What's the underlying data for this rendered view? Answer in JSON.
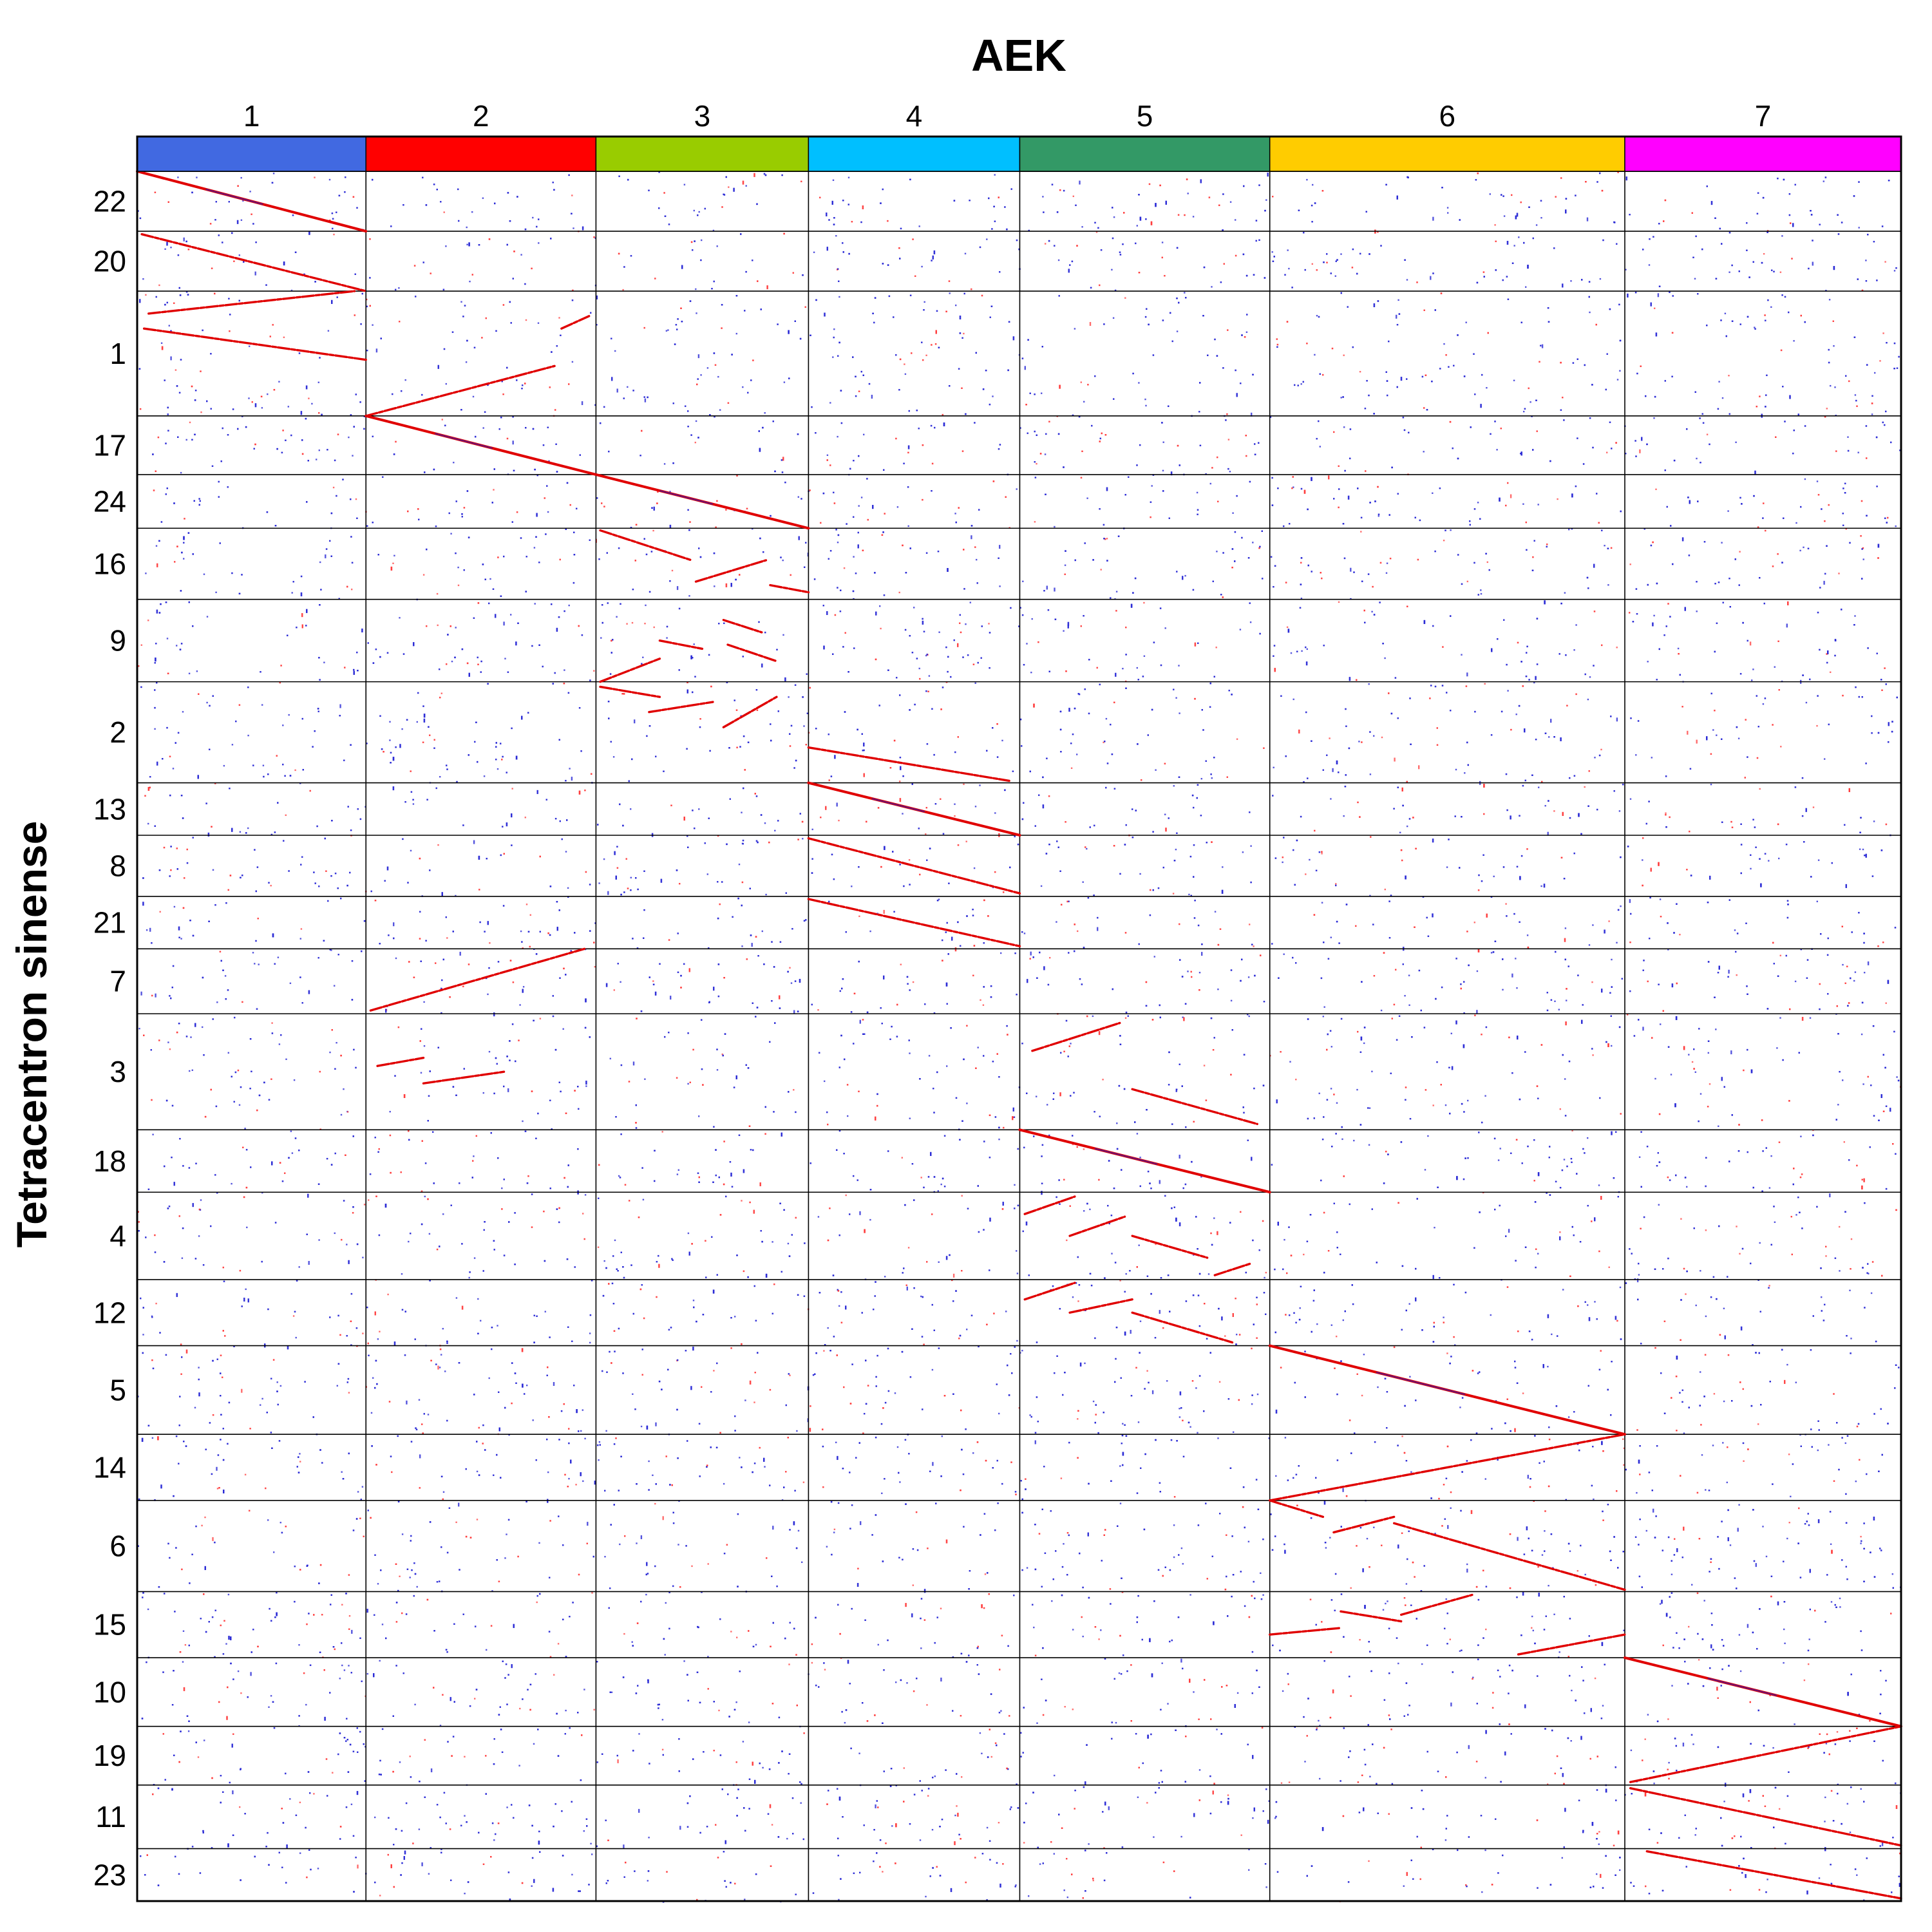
{
  "chart_data": {
    "type": "scatter",
    "title": "AEK",
    "xlabel": "AEK",
    "ylabel": "Tetracentron sinense",
    "x_chromosomes": [
      {
        "label": "1",
        "color": "#4169e1",
        "size": 183
      },
      {
        "label": "2",
        "color": "#ff0000",
        "size": 184
      },
      {
        "label": "3",
        "color": "#99cc00",
        "size": 170
      },
      {
        "label": "4",
        "color": "#00bfff",
        "size": 169
      },
      {
        "label": "5",
        "color": "#339966",
        "size": 200
      },
      {
        "label": "6",
        "color": "#ffcc00",
        "size": 284
      },
      {
        "label": "7",
        "color": "#ff00ff",
        "size": 221
      }
    ],
    "y_chromosomes": [
      {
        "label": "22",
        "size": 48
      },
      {
        "label": "20",
        "size": 48
      },
      {
        "label": "1",
        "size": 100
      },
      {
        "label": "17",
        "size": 47
      },
      {
        "label": "24",
        "size": 43
      },
      {
        "label": "16",
        "size": 57
      },
      {
        "label": "9",
        "size": 66
      },
      {
        "label": "2",
        "size": 81
      },
      {
        "label": "13",
        "size": 42
      },
      {
        "label": "8",
        "size": 49
      },
      {
        "label": "21",
        "size": 42
      },
      {
        "label": "7",
        "size": 52
      },
      {
        "label": "3",
        "size": 93
      },
      {
        "label": "18",
        "size": 50
      },
      {
        "label": "4",
        "size": 70
      },
      {
        "label": "12",
        "size": 53
      },
      {
        "label": "5",
        "size": 71
      },
      {
        "label": "14",
        "size": 53
      },
      {
        "label": "6",
        "size": 73
      },
      {
        "label": "15",
        "size": 53
      },
      {
        "label": "10",
        "size": 55
      },
      {
        "label": "19",
        "size": 47
      },
      {
        "label": "11",
        "size": 51
      },
      {
        "label": "23",
        "size": 42
      }
    ],
    "synteny_blocks": [
      {
        "x": 1,
        "y": 22,
        "x0": 0.0,
        "x1": 1.0,
        "y0": 0.0,
        "y1": 1.0,
        "style": "solid"
      },
      {
        "x": 1,
        "y": 20,
        "x0": 0.02,
        "x1": 1.0,
        "y0": 0.05,
        "y1": 1.0,
        "style": "dashed"
      },
      {
        "x": 1,
        "y": 1,
        "x0": 0.05,
        "x1": 0.95,
        "y0": 0.18,
        "y1": 0.0,
        "style": "dashed"
      },
      {
        "x": 1,
        "y": 1,
        "x0": 0.03,
        "x1": 1.0,
        "y0": 0.3,
        "y1": 0.55,
        "style": "dashed"
      },
      {
        "x": 2,
        "y": 1,
        "x0": 0.0,
        "x1": 0.82,
        "y0": 1.0,
        "y1": 0.6,
        "style": "dashed"
      },
      {
        "x": 2,
        "y": 1,
        "x0": 0.85,
        "x1": 0.97,
        "y0": 0.3,
        "y1": 0.2,
        "style": "dashed"
      },
      {
        "x": 2,
        "y": 17,
        "x0": 0.0,
        "x1": 1.0,
        "y0": 0.0,
        "y1": 1.0,
        "style": "solid"
      },
      {
        "x": 3,
        "y": 24,
        "x0": 0.0,
        "x1": 1.0,
        "y0": 0.0,
        "y1": 1.0,
        "style": "solid"
      },
      {
        "x": 3,
        "y": 16,
        "x0": 0.02,
        "x1": 0.45,
        "y0": 0.03,
        "y1": 0.45,
        "style": "dashed"
      },
      {
        "x": 3,
        "y": 16,
        "x0": 0.47,
        "x1": 0.8,
        "y0": 0.75,
        "y1": 0.45,
        "style": "dashed"
      },
      {
        "x": 3,
        "y": 16,
        "x0": 0.82,
        "x1": 1.0,
        "y0": 0.8,
        "y1": 0.9,
        "style": "dashed"
      },
      {
        "x": 3,
        "y": 9,
        "x0": 0.02,
        "x1": 0.3,
        "y0": 1.0,
        "y1": 0.72,
        "style": "dashed"
      },
      {
        "x": 3,
        "y": 9,
        "x0": 0.3,
        "x1": 0.5,
        "y0": 0.5,
        "y1": 0.6,
        "style": "dashed"
      },
      {
        "x": 3,
        "y": 9,
        "x0": 0.6,
        "x1": 0.78,
        "y0": 0.25,
        "y1": 0.4,
        "style": "dashed"
      },
      {
        "x": 3,
        "y": 9,
        "x0": 0.62,
        "x1": 0.85,
        "y0": 0.55,
        "y1": 0.75,
        "style": "dashed"
      },
      {
        "x": 3,
        "y": 2,
        "x0": 0.02,
        "x1": 0.3,
        "y0": 0.05,
        "y1": 0.15,
        "style": "dashed"
      },
      {
        "x": 3,
        "y": 2,
        "x0": 0.25,
        "x1": 0.55,
        "y0": 0.3,
        "y1": 0.2,
        "style": "dashed"
      },
      {
        "x": 3,
        "y": 2,
        "x0": 0.6,
        "x1": 0.85,
        "y0": 0.45,
        "y1": 0.15,
        "style": "dashed"
      },
      {
        "x": 4,
        "y": 2,
        "x0": 0.0,
        "x1": 0.95,
        "y0": 0.65,
        "y1": 0.98,
        "style": "dashed"
      },
      {
        "x": 4,
        "y": 13,
        "x0": 0.0,
        "x1": 1.0,
        "y0": 0.0,
        "y1": 1.0,
        "style": "solid"
      },
      {
        "x": 4,
        "y": 8,
        "x0": 0.0,
        "x1": 1.0,
        "y0": 0.05,
        "y1": 0.95,
        "style": "dashed"
      },
      {
        "x": 4,
        "y": 21,
        "x0": 0.0,
        "x1": 1.0,
        "y0": 0.05,
        "y1": 0.95,
        "style": "dashed"
      },
      {
        "x": 2,
        "y": 7,
        "x0": 0.02,
        "x1": 0.95,
        "y0": 0.95,
        "y1": 0.0,
        "style": "dashed"
      },
      {
        "x": 2,
        "y": 3,
        "x0": 0.05,
        "x1": 0.25,
        "y0": 0.45,
        "y1": 0.38,
        "style": "dashed"
      },
      {
        "x": 2,
        "y": 3,
        "x0": 0.25,
        "x1": 0.6,
        "y0": 0.6,
        "y1": 0.5,
        "style": "dashed"
      },
      {
        "x": 5,
        "y": 3,
        "x0": 0.05,
        "x1": 0.4,
        "y0": 0.32,
        "y1": 0.08,
        "style": "dashed"
      },
      {
        "x": 5,
        "y": 3,
        "x0": 0.45,
        "x1": 0.95,
        "y0": 0.65,
        "y1": 0.95,
        "style": "dashed"
      },
      {
        "x": 5,
        "y": 18,
        "x0": 0.0,
        "x1": 1.0,
        "y0": 0.0,
        "y1": 1.0,
        "style": "solid"
      },
      {
        "x": 5,
        "y": 4,
        "x0": 0.02,
        "x1": 0.22,
        "y0": 0.25,
        "y1": 0.05,
        "style": "dashed"
      },
      {
        "x": 5,
        "y": 4,
        "x0": 0.2,
        "x1": 0.42,
        "y0": 0.5,
        "y1": 0.28,
        "style": "dashed"
      },
      {
        "x": 5,
        "y": 4,
        "x0": 0.45,
        "x1": 0.75,
        "y0": 0.5,
        "y1": 0.75,
        "style": "dashed"
      },
      {
        "x": 5,
        "y": 4,
        "x0": 0.78,
        "x1": 0.92,
        "y0": 0.95,
        "y1": 0.82,
        "style": "dashed"
      },
      {
        "x": 5,
        "y": 12,
        "x0": 0.02,
        "x1": 0.22,
        "y0": 0.3,
        "y1": 0.05,
        "style": "dashed"
      },
      {
        "x": 5,
        "y": 12,
        "x0": 0.2,
        "x1": 0.45,
        "y0": 0.5,
        "y1": 0.3,
        "style": "dashed"
      },
      {
        "x": 5,
        "y": 12,
        "x0": 0.45,
        "x1": 0.85,
        "y0": 0.5,
        "y1": 0.95,
        "style": "dashed"
      },
      {
        "x": 6,
        "y": 5,
        "x0": 0.0,
        "x1": 1.0,
        "y0": 0.0,
        "y1": 1.0,
        "style": "solid"
      },
      {
        "x": 6,
        "y": 14,
        "x0": 0.0,
        "x1": 1.0,
        "y0": 1.0,
        "y1": 0.0,
        "style": "dashed"
      },
      {
        "x": 6,
        "y": 6,
        "x0": 0.0,
        "x1": 0.15,
        "y0": 0.0,
        "y1": 0.18,
        "style": "dashed"
      },
      {
        "x": 6,
        "y": 6,
        "x0": 0.18,
        "x1": 0.35,
        "y0": 0.35,
        "y1": 0.18,
        "style": "dashed"
      },
      {
        "x": 6,
        "y": 6,
        "x0": 0.35,
        "x1": 1.0,
        "y0": 0.25,
        "y1": 0.98,
        "style": "dashed"
      },
      {
        "x": 6,
        "y": 15,
        "x0": 0.0,
        "x1": 0.2,
        "y0": 0.65,
        "y1": 0.55,
        "style": "dashed"
      },
      {
        "x": 6,
        "y": 15,
        "x0": 0.2,
        "x1": 0.37,
        "y0": 0.3,
        "y1": 0.45,
        "style": "dashed"
      },
      {
        "x": 6,
        "y": 15,
        "x0": 0.37,
        "x1": 0.57,
        "y0": 0.35,
        "y1": 0.05,
        "style": "dashed"
      },
      {
        "x": 6,
        "y": 15,
        "x0": 0.7,
        "x1": 1.0,
        "y0": 0.95,
        "y1": 0.65,
        "style": "dashed"
      },
      {
        "x": 7,
        "y": 10,
        "x0": 0.0,
        "x1": 1.0,
        "y0": 0.0,
        "y1": 1.0,
        "style": "solid"
      },
      {
        "x": 7,
        "y": 19,
        "x0": 0.02,
        "x1": 1.0,
        "y0": 0.95,
        "y1": 0.0,
        "style": "dashed"
      },
      {
        "x": 7,
        "y": 11,
        "x0": 0.02,
        "x1": 1.0,
        "y0": 0.05,
        "y1": 0.95,
        "style": "dashed"
      },
      {
        "x": 7,
        "y": 23,
        "x0": 0.08,
        "x1": 1.0,
        "y0": 0.05,
        "y1": 0.95,
        "style": "dashed"
      }
    ],
    "background_points": "random sparse anchor hits (blue and red)",
    "grid": true,
    "legend": "none"
  }
}
